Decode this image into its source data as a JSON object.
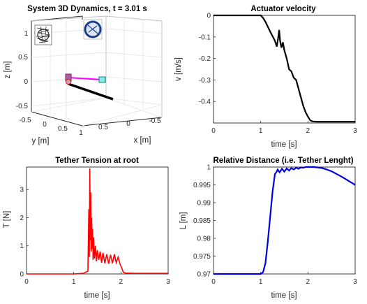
{
  "chart_data": [
    {
      "type": "scatter",
      "title": "System 3D Dynamics, t = 3.01 s",
      "xlabel": "x [m]",
      "ylabel": "y [m]",
      "zlabel": "z [m]",
      "x_ticks": [
        "0.5",
        "0",
        "-0.5"
      ],
      "y_ticks": [
        "-0.5",
        "0",
        "0.5",
        "1"
      ],
      "z_ticks": [
        "1",
        "0.5",
        "0",
        "-0.5"
      ],
      "grid": true,
      "legend": "none",
      "colors": {
        "tether": "#ff00ff",
        "arm": "#000000",
        "box": "#00c8c8",
        "marker": "#cc2222",
        "disk": "#1a3f8a"
      }
    },
    {
      "type": "line",
      "title": "Actuator velocity",
      "xlabel": "time [s]",
      "ylabel": "v [m/s]",
      "xlim": [
        0,
        3
      ],
      "ylim": [
        -0.5,
        0
      ],
      "x_ticks": [
        "0",
        "1",
        "2",
        "3"
      ],
      "y_ticks": [
        "0",
        "-0.1",
        "-0.2",
        "-0.3",
        "-0.4"
      ],
      "y_tick_values": [
        0,
        -0.1,
        -0.2,
        -0.3,
        -0.4
      ],
      "color": "#000000",
      "grid": false,
      "series": [
        {
          "x": [
            0,
            0.5,
            1.0,
            1.05,
            1.1,
            1.2,
            1.3,
            1.34,
            1.37,
            1.39,
            1.41,
            1.44,
            1.47,
            1.5,
            1.55,
            1.6,
            1.65,
            1.7,
            1.75,
            1.8,
            1.85,
            1.9,
            1.95,
            2.0,
            2.05,
            2.1,
            2.2,
            2.4,
            2.7,
            3.0
          ],
          "y": [
            0,
            0,
            0,
            -0.012,
            -0.03,
            -0.075,
            -0.118,
            -0.145,
            -0.105,
            -0.068,
            -0.118,
            -0.15,
            -0.125,
            -0.162,
            -0.2,
            -0.25,
            -0.26,
            -0.29,
            -0.3,
            -0.34,
            -0.38,
            -0.42,
            -0.45,
            -0.47,
            -0.488,
            -0.493,
            -0.494,
            -0.494,
            -0.494,
            -0.494
          ]
        }
      ]
    },
    {
      "type": "line",
      "title": "Tether Tension at root",
      "xlabel": "time [s]",
      "ylabel": "T [N]",
      "xlim": [
        0,
        3
      ],
      "ylim": [
        0,
        3.8
      ],
      "x_ticks": [
        "0",
        "1",
        "2",
        "3"
      ],
      "y_ticks": [
        "0",
        "1",
        "2",
        "3"
      ],
      "y_tick_values": [
        0,
        1,
        2,
        3
      ],
      "color": "#ff0000",
      "grid": false,
      "series": [
        {
          "x": [
            0,
            1.0,
            1.2,
            1.3,
            1.32,
            1.33,
            1.34,
            1.35,
            1.36,
            1.37,
            1.38,
            1.39,
            1.4,
            1.41,
            1.42,
            1.44,
            1.46,
            1.48,
            1.5,
            1.53,
            1.56,
            1.59,
            1.62,
            1.66,
            1.7,
            1.74,
            1.78,
            1.82,
            1.86,
            1.9,
            1.94,
            1.98,
            2.02,
            2.05,
            2.1,
            2.3,
            3.0
          ],
          "y": [
            0,
            0,
            0.02,
            0.1,
            2.3,
            0.6,
            3.75,
            1.2,
            2.9,
            0.8,
            2.0,
            0.9,
            1.6,
            0.5,
            1.3,
            0.55,
            1.0,
            0.45,
            0.85,
            0.5,
            0.8,
            0.4,
            0.75,
            0.38,
            0.7,
            0.36,
            0.68,
            0.38,
            0.7,
            0.4,
            0.6,
            0.35,
            0.2,
            0.06,
            0.03,
            0.02,
            0.02
          ]
        }
      ]
    },
    {
      "type": "line",
      "title": "Relative Distance (i.e. Tether Lenght)",
      "xlabel": "time [s]",
      "ylabel": "L [m]",
      "xlim": [
        0,
        3
      ],
      "ylim": [
        0.97,
        1.0
      ],
      "x_ticks": [
        "0",
        "1",
        "2",
        "3"
      ],
      "y_ticks": [
        "0.97",
        "0.975",
        "0.98",
        "0.985",
        "0.99",
        "0.995",
        "1"
      ],
      "y_tick_values": [
        0.97,
        0.975,
        0.98,
        0.985,
        0.99,
        0.995,
        1.0
      ],
      "color": "#0000e0",
      "grid": false,
      "series": [
        {
          "x": [
            0,
            1.0,
            1.05,
            1.1,
            1.15,
            1.2,
            1.25,
            1.3,
            1.33,
            1.36,
            1.4,
            1.45,
            1.5,
            1.55,
            1.6,
            1.65,
            1.7,
            1.75,
            1.8,
            1.85,
            1.9,
            1.95,
            2.0,
            2.1,
            2.2,
            2.3,
            2.4,
            2.5,
            2.6,
            2.7,
            2.8,
            2.9,
            3.0
          ],
          "y": [
            0.97,
            0.97,
            0.9705,
            0.973,
            0.979,
            0.986,
            0.993,
            0.998,
            0.9985,
            0.9993,
            0.9985,
            0.9995,
            0.9987,
            0.9996,
            0.999,
            0.9997,
            0.9993,
            0.9998,
            0.9995,
            0.9999,
            0.9998,
            1.0,
            1.0,
            1.0,
            0.9999,
            0.9997,
            0.9993,
            0.9988,
            0.9981,
            0.9974,
            0.9966,
            0.9958,
            0.995
          ]
        }
      ]
    }
  ]
}
